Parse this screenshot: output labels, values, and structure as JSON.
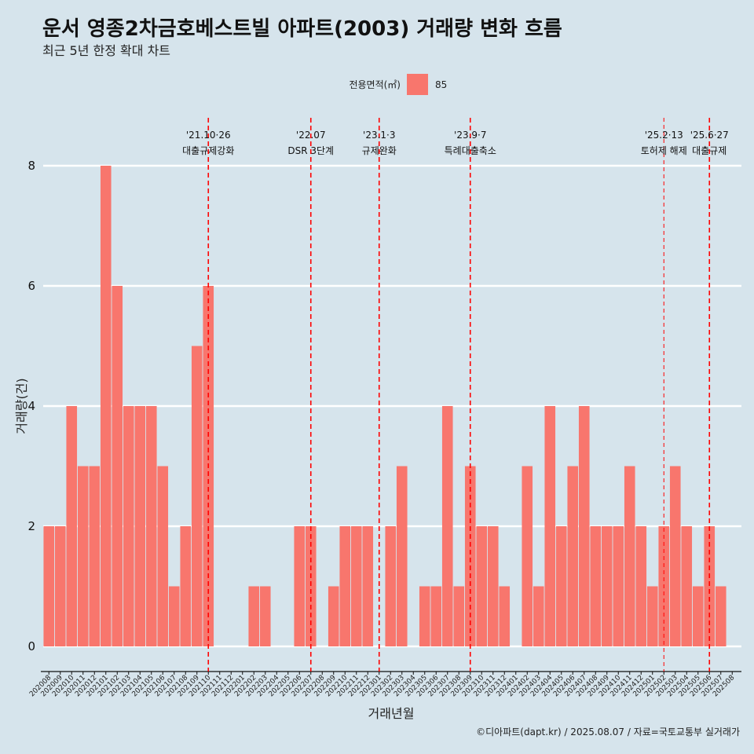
{
  "chart_data": {
    "type": "bar",
    "title": "운서 영종2차금호베스트빌 아파트(2003) 거래량 변화 흐름",
    "subtitle": "최근 5년 한정 확대 차트",
    "xlabel": "거래년월",
    "ylabel": "거래량(건)",
    "legend": {
      "title": "전용면적(㎡)",
      "entries": [
        {
          "label": "85",
          "color": "#f8766d"
        }
      ],
      "position": "top"
    },
    "ylim": [
      0,
      8
    ],
    "yticks": [
      0,
      2,
      4,
      6,
      8
    ],
    "grid": true,
    "categories": [
      "202008",
      "202009",
      "202010",
      "202011",
      "202012",
      "202101",
      "202102",
      "202103",
      "202104",
      "202105",
      "202106",
      "202107",
      "202108",
      "202109",
      "202110",
      "202111",
      "202112",
      "202201",
      "202202",
      "202203",
      "202204",
      "202205",
      "202206",
      "202207",
      "202208",
      "202209",
      "202210",
      "202211",
      "202212",
      "202301",
      "202302",
      "202303",
      "202304",
      "202305",
      "202306",
      "202307",
      "202308",
      "202309",
      "202310",
      "202311",
      "202312",
      "202401",
      "202402",
      "202403",
      "202404",
      "202405",
      "202406",
      "202407",
      "202408",
      "202409",
      "202410",
      "202411",
      "202412",
      "202501",
      "202502",
      "202503",
      "202504",
      "202505",
      "202506",
      "202507",
      "202508"
    ],
    "series": [
      {
        "name": "85",
        "color": "#f8766d",
        "values": [
          2,
          2,
          4,
          3,
          3,
          8,
          6,
          4,
          4,
          4,
          3,
          1,
          2,
          5,
          6,
          0,
          0,
          0,
          1,
          1,
          0,
          0,
          2,
          2,
          0,
          1,
          2,
          2,
          2,
          0,
          2,
          3,
          0,
          1,
          1,
          4,
          1,
          3,
          2,
          2,
          1,
          0,
          3,
          1,
          4,
          2,
          3,
          4,
          2,
          2,
          2,
          3,
          2,
          1,
          2,
          3,
          2,
          1,
          2,
          1,
          0
        ]
      }
    ],
    "annotations": [
      {
        "category": "202110",
        "line1": "'21.10·26",
        "line2": "대출규제강화",
        "style": "dashed"
      },
      {
        "category": "202207",
        "line1": "'22.07",
        "line2": "DSR 3단계",
        "style": "dashed"
      },
      {
        "category": "202301",
        "line1": "'23.1·3",
        "line2": "규제완화",
        "style": "dashed"
      },
      {
        "category": "202309",
        "line1": "'23.9·7",
        "line2": "특례대출축소",
        "style": "dashed"
      },
      {
        "category": "202502",
        "line1": "'25.2·13",
        "line2": "토허제 해제",
        "style": "thin-dashed"
      },
      {
        "category": "202506",
        "line1": "'25.6·27",
        "line2": "대출규제",
        "style": "dashed"
      }
    ],
    "annotation_color": "#ff0000"
  },
  "caption": "©디아파트(dapt.kr) / 2025.08.07 / 자료=국토교통부 실거래가"
}
